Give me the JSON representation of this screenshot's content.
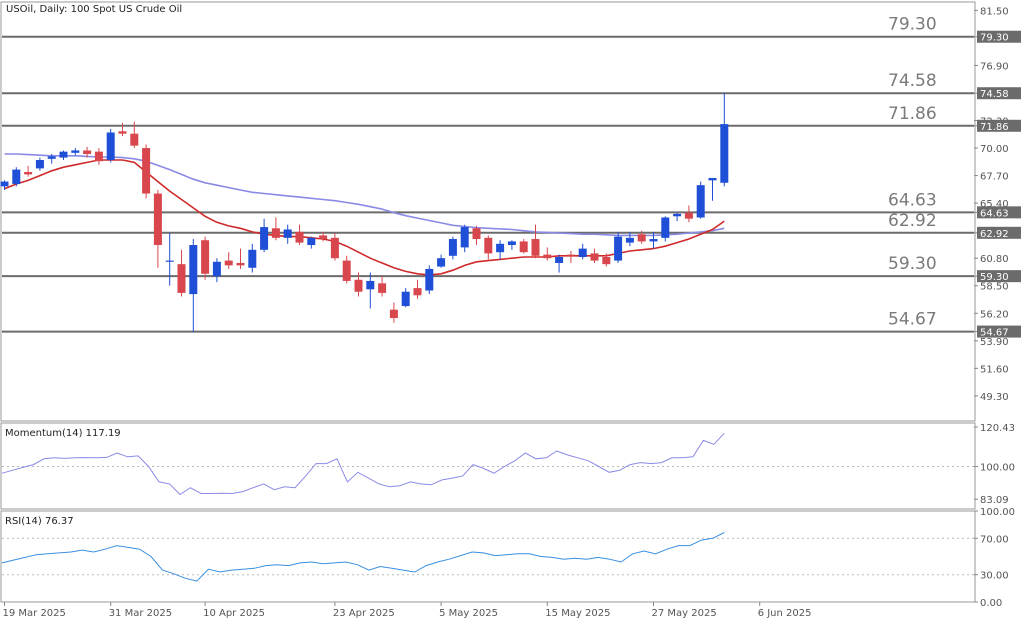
{
  "header": {
    "title": "USOil, Daily:  100 Spot US Crude Oil"
  },
  "colors": {
    "bull": "#1f4fd6",
    "bear": "#d9474e",
    "ma_fast": "#cf2a2a",
    "ma_slow": "#8a8ae6",
    "level": "#6b6b6b",
    "momentum": "#8a8ae6",
    "rsi": "#3a8fe0"
  },
  "chart_data": [
    {
      "type": "candlestick",
      "title": "USOil, Daily:  100 Spot US Crude Oil",
      "ylim": [
        47.2,
        82.2
      ],
      "yticks": [
        81.5,
        79.3,
        76.9,
        74.58,
        72.3,
        71.86,
        70.0,
        67.7,
        65.4,
        64.63,
        62.92,
        60.8,
        59.3,
        58.5,
        56.2,
        54.67,
        53.9,
        51.6,
        49.3
      ],
      "xticks": [
        "19 Mar 2025",
        "31 Mar 2025",
        "10 Apr 2025",
        "23 Apr 2025",
        "5 May 2025",
        "15 May 2025",
        "27 May 2025",
        "6 Jun 2025"
      ],
      "levels": [
        {
          "value": 79.3,
          "label": "79.30"
        },
        {
          "value": 74.58,
          "label": "74.58"
        },
        {
          "value": 71.86,
          "label": "71.86"
        },
        {
          "value": 64.63,
          "label": "64.63"
        },
        {
          "value": 62.92,
          "label": "62.92"
        },
        {
          "value": 59.3,
          "label": "59.30"
        },
        {
          "value": 54.67,
          "label": "54.67"
        }
      ],
      "ohlc": [
        [
          66.8,
          67.3,
          66.5,
          67.2
        ],
        [
          67.0,
          68.4,
          66.8,
          68.2
        ],
        [
          68.0,
          68.5,
          67.6,
          67.8
        ],
        [
          68.3,
          69.2,
          68.1,
          69.0
        ],
        [
          69.1,
          69.5,
          68.7,
          69.3
        ],
        [
          69.2,
          69.8,
          69.0,
          69.7
        ],
        [
          69.6,
          70.0,
          69.4,
          69.8
        ],
        [
          69.8,
          70.1,
          69.2,
          69.5
        ],
        [
          69.7,
          70.0,
          68.6,
          68.9
        ],
        [
          69.0,
          71.6,
          68.8,
          71.3
        ],
        [
          71.4,
          72.1,
          71.0,
          71.2
        ],
        [
          71.2,
          72.2,
          70.0,
          70.2
        ],
        [
          70.0,
          70.3,
          65.8,
          66.2
        ],
        [
          66.2,
          66.5,
          60.0,
          61.9
        ],
        [
          60.5,
          62.9,
          58.5,
          60.6
        ],
        [
          60.3,
          61.5,
          57.6,
          57.9
        ],
        [
          57.8,
          62.4,
          54.6,
          61.9
        ],
        [
          62.3,
          62.6,
          59.0,
          59.5
        ],
        [
          59.3,
          60.8,
          58.8,
          60.5
        ],
        [
          60.6,
          61.3,
          59.9,
          60.2
        ],
        [
          60.4,
          61.6,
          59.9,
          60.2
        ],
        [
          60.0,
          62.0,
          59.6,
          61.5
        ],
        [
          61.5,
          64.1,
          61.3,
          63.4
        ],
        [
          63.3,
          64.2,
          62.3,
          62.5
        ],
        [
          62.5,
          63.6,
          62.0,
          63.2
        ],
        [
          63.0,
          63.6,
          61.9,
          62.1
        ],
        [
          61.9,
          62.6,
          61.6,
          62.5
        ],
        [
          62.7,
          63.0,
          62.2,
          62.4
        ],
        [
          62.5,
          62.9,
          60.6,
          60.8
        ],
        [
          60.6,
          61.0,
          58.7,
          58.9
        ],
        [
          59.0,
          59.6,
          57.6,
          58.0
        ],
        [
          58.2,
          59.6,
          56.6,
          58.9
        ],
        [
          58.7,
          59.3,
          57.6,
          57.9
        ],
        [
          56.5,
          57.1,
          55.4,
          55.8
        ],
        [
          56.8,
          58.3,
          56.7,
          58.0
        ],
        [
          58.3,
          59.0,
          57.4,
          57.7
        ],
        [
          58.1,
          60.2,
          57.8,
          59.9
        ],
        [
          60.1,
          61.1,
          60.0,
          60.8
        ],
        [
          61.0,
          62.6,
          60.7,
          62.4
        ],
        [
          61.7,
          63.6,
          61.3,
          63.4
        ],
        [
          63.3,
          63.5,
          61.9,
          62.4
        ],
        [
          62.5,
          62.7,
          60.7,
          61.2
        ],
        [
          61.3,
          62.3,
          60.7,
          62.0
        ],
        [
          61.9,
          62.3,
          61.5,
          62.2
        ],
        [
          62.2,
          62.4,
          61.2,
          61.3
        ],
        [
          62.4,
          63.6,
          60.8,
          61.0
        ],
        [
          61.1,
          61.7,
          60.6,
          60.8
        ],
        [
          60.4,
          61.1,
          59.6,
          60.9
        ],
        [
          61.1,
          61.4,
          60.4,
          61.0
        ],
        [
          60.9,
          62.0,
          60.7,
          61.6
        ],
        [
          61.2,
          61.6,
          60.4,
          60.6
        ],
        [
          60.9,
          61.2,
          60.1,
          60.3
        ],
        [
          60.6,
          63.0,
          60.4,
          62.6
        ],
        [
          62.1,
          63.0,
          61.8,
          62.5
        ],
        [
          62.8,
          63.1,
          62.0,
          62.2
        ],
        [
          62.2,
          63.0,
          61.6,
          62.4
        ],
        [
          62.5,
          64.3,
          62.2,
          64.2
        ],
        [
          64.3,
          64.6,
          63.9,
          64.5
        ],
        [
          64.6,
          65.2,
          63.8,
          64.1
        ],
        [
          64.2,
          67.2,
          64.1,
          66.9
        ],
        [
          67.3,
          67.5,
          65.6,
          67.5
        ],
        [
          67.1,
          74.6,
          66.8,
          72.0
        ]
      ],
      "ma_fast": [
        66.6,
        67.0,
        67.3,
        67.7,
        68.1,
        68.4,
        68.6,
        68.8,
        69.0,
        69.0,
        69.0,
        68.8,
        68.0,
        67.2,
        66.4,
        65.7,
        65.0,
        64.3,
        63.8,
        63.5,
        63.3,
        63.0,
        62.8,
        62.7,
        62.6,
        62.6,
        62.5,
        62.4,
        62.2,
        61.8,
        61.3,
        60.8,
        60.4,
        60.0,
        59.7,
        59.5,
        59.4,
        59.5,
        59.8,
        60.2,
        60.5,
        60.6,
        60.7,
        60.8,
        60.9,
        60.9,
        60.9,
        61.0,
        61.0,
        61.0,
        61.0,
        61.0,
        61.2,
        61.4,
        61.5,
        61.6,
        61.8,
        62.1,
        62.4,
        62.8,
        63.2,
        63.9
      ],
      "ma_slow": [
        69.5,
        69.5,
        69.45,
        69.4,
        69.35,
        69.35,
        69.35,
        69.3,
        69.25,
        69.25,
        69.2,
        69.1,
        68.9,
        68.55,
        68.2,
        67.8,
        67.4,
        67.1,
        66.9,
        66.7,
        66.5,
        66.3,
        66.2,
        66.1,
        66.0,
        65.9,
        65.8,
        65.7,
        65.6,
        65.45,
        65.3,
        65.1,
        64.9,
        64.6,
        64.35,
        64.15,
        63.95,
        63.75,
        63.55,
        63.45,
        63.35,
        63.3,
        63.25,
        63.2,
        63.1,
        63.0,
        62.95,
        62.9,
        62.85,
        62.8,
        62.8,
        62.75,
        62.7,
        62.7,
        62.7,
        62.7,
        62.75,
        62.8,
        62.9,
        63.0,
        63.1,
        63.3
      ]
    },
    {
      "type": "line",
      "title": "Momentum(14) 117.19",
      "ylim": [
        78.0,
        122.5
      ],
      "yticks": [
        120.43,
        100.0,
        83.09
      ],
      "guides": [
        100.0
      ],
      "values": [
        96.5,
        98.0,
        99.5,
        101.0,
        104.0,
        104.5,
        104.2,
        104.5,
        104.6,
        104.5,
        104.7,
        107.0,
        105.0,
        105.5,
        100.0,
        92.0,
        91.0,
        85.5,
        89.0,
        86.0,
        86.0,
        86.2,
        86.0,
        87.0,
        89.0,
        91.0,
        88.0,
        89.5,
        89.0,
        95.0,
        101.5,
        101.5,
        104.0,
        92.0,
        97.0,
        94.0,
        91.0,
        89.5,
        90.0,
        92.0,
        91.0,
        90.5,
        93.0,
        94.0,
        95.0,
        101.0,
        99.0,
        96.5,
        100.0,
        103.0,
        107.0,
        104.0,
        104.5,
        108.0,
        106.0,
        104.5,
        103.0,
        100.0,
        97.0,
        98.0,
        101.0,
        102.0,
        101.5,
        102.0,
        104.5,
        104.5,
        105.0,
        113.5,
        111.5,
        117.19
      ]
    },
    {
      "type": "line",
      "title": "RSI(14) 76.37",
      "ylim": [
        0.0,
        100.0
      ],
      "yticks": [
        100.0,
        70.0,
        30.0,
        0.0
      ],
      "guides": [
        70.0,
        30.0
      ],
      "values": [
        43.0,
        46.0,
        49.0,
        52.0,
        53.0,
        54.0,
        55.0,
        57.0,
        55.0,
        58.0,
        62.0,
        60.0,
        58.0,
        50.0,
        35.0,
        31.0,
        26.0,
        23.0,
        36.0,
        33.0,
        35.0,
        36.0,
        37.0,
        40.0,
        41.0,
        40.0,
        43.0,
        44.0,
        42.0,
        43.0,
        44.0,
        41.0,
        35.0,
        39.0,
        37.0,
        35.0,
        33.0,
        40.0,
        44.0,
        47.0,
        51.0,
        55.0,
        54.0,
        51.0,
        52.0,
        53.0,
        53.0,
        50.0,
        49.0,
        47.0,
        48.0,
        47.0,
        49.0,
        47.0,
        44.0,
        53.0,
        56.0,
        53.0,
        58.0,
        62.0,
        62.0,
        68.0,
        70.0,
        76.37
      ]
    }
  ]
}
